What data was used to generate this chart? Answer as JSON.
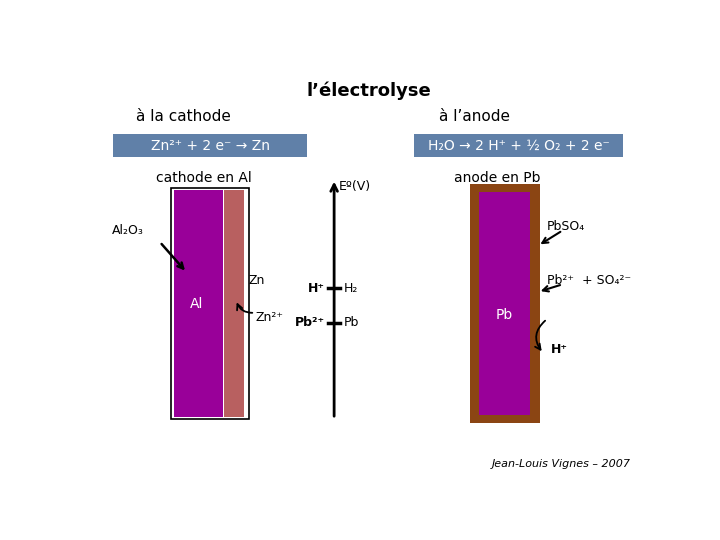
{
  "title": "l’électrolyse",
  "cathode_label": "à la cathode",
  "anode_label": "à l’anode",
  "cathode_eq": "Zn²⁺ + 2 e⁻ → Zn",
  "anode_eq": "H₂O → 2 H⁺ + ½ O₂ + 2 e⁻",
  "cathode_electrode": "cathode en Al",
  "anode_electrode": "anode en Pb",
  "al2o3_label": "Al₂O₃",
  "al_label": "Al",
  "zn_label": "Zn",
  "zn2plus_label": "Zn²⁺",
  "pb_label": "Pb",
  "pbso4_label": "PbSO₄",
  "pb2plus_so4_label": "Pb²⁺  + SO₄²⁻",
  "hplus_label": "H⁺",
  "h2_label": "H₂",
  "pb2plus_axis_label": "Pb²⁺",
  "pb_axis_label": "Pb",
  "hplus_axis_label": "H⁺",
  "eo_label": "Eº(V)",
  "footer": "Jean-Louis Vignes – 2007",
  "bg_color": "#ffffff",
  "blue_box_color": "#6080a8",
  "purple_color": "#990099",
  "red_pink_color": "#b86060",
  "brown_color": "#8b4513",
  "title_fontsize": 13,
  "label_fontsize": 11,
  "eq_fontsize": 10,
  "small_fontsize": 9
}
